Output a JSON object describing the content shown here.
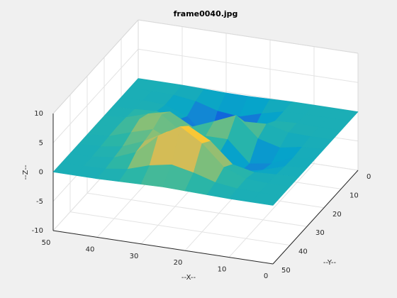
{
  "chart_data": {
    "type": "surface",
    "title": "frame0040.jpg",
    "xlabel": "--X--",
    "ylabel": "--Y--",
    "zlabel": "--Z--",
    "x": [
      0,
      5,
      10,
      15,
      20,
      25,
      30,
      35,
      40,
      45,
      50
    ],
    "y": [
      0,
      5,
      10,
      15,
      20,
      25,
      30,
      35,
      40,
      45,
      50
    ],
    "z": [
      [
        0,
        0,
        0,
        0,
        -0.1,
        -0.2,
        -0.2,
        -0.1,
        0,
        0,
        0
      ],
      [
        0,
        0,
        0,
        -0.1,
        -1.0,
        -2.1,
        -1.7,
        -0.6,
        -0.1,
        0,
        0
      ],
      [
        0,
        0,
        0.1,
        -0.1,
        -2.4,
        -5.8,
        -5.0,
        -1.6,
        -0.2,
        0,
        0
      ],
      [
        0,
        0,
        0.1,
        1.0,
        0.8,
        -3.0,
        -3.6,
        -0.5,
        0.3,
        0.1,
        0
      ],
      [
        0,
        -0.2,
        -0.9,
        0.1,
        3.5,
        1.9,
        0.4,
        2.4,
        1.5,
        0.3,
        0
      ],
      [
        0,
        -0.4,
        -2.0,
        -2.6,
        1.0,
        1.0,
        0.8,
        3.5,
        2.2,
        0.4,
        0
      ],
      [
        0,
        -0.3,
        -1.5,
        -2.3,
        0.1,
        0.7,
        0.9,
        2.6,
        1.5,
        0.3,
        0
      ],
      [
        0,
        -0.1,
        -0.3,
        0.5,
        3.9,
        5.9,
        4.3,
        2.2,
        0.7,
        0.1,
        0
      ],
      [
        0,
        0,
        0.2,
        1.6,
        5.1,
        7.4,
        5.2,
        1.9,
        0.4,
        0,
        0
      ],
      [
        0,
        0,
        0.1,
        0.6,
        1.7,
        2.5,
        1.8,
        0.6,
        0.1,
        0,
        0
      ],
      [
        0,
        0,
        0,
        0.1,
        0.2,
        0.3,
        0.2,
        0.1,
        0,
        0,
        0
      ]
    ],
    "xlim": [
      0,
      50
    ],
    "ylim": [
      0,
      50
    ],
    "zlim": [
      -10,
      10
    ],
    "xticks": [
      0,
      10,
      20,
      30,
      40,
      50
    ],
    "yticks": [
      0,
      10,
      20,
      30,
      40,
      50
    ],
    "zticks": [
      -10,
      -5,
      0,
      5,
      10
    ],
    "grid": true,
    "colormap": [
      "#352a87",
      "#0f5cdd",
      "#1481d6",
      "#06a4ca",
      "#2eb7a4",
      "#87bf77",
      "#d1bb59",
      "#fec832",
      "#f9fb0e"
    ]
  }
}
